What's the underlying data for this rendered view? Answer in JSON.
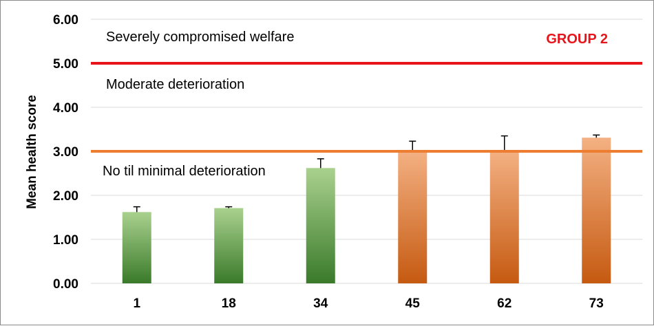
{
  "chart_data": {
    "type": "bar",
    "title": "",
    "group_label": "GROUP 2",
    "xlabel": "",
    "ylabel": "Mean health score",
    "ylim": [
      0,
      6
    ],
    "yticks": [
      "0.00",
      "1.00",
      "2.00",
      "3.00",
      "4.00",
      "5.00",
      "6.00"
    ],
    "categories": [
      "1",
      "18",
      "34",
      "45",
      "62",
      "73"
    ],
    "values": [
      1.62,
      1.71,
      2.62,
      3.02,
      3.02,
      3.31
    ],
    "error_upper": [
      1.74,
      1.74,
      2.83,
      3.23,
      3.35,
      3.37
    ],
    "bar_colors": [
      "green",
      "green",
      "green",
      "orange",
      "orange",
      "orange"
    ],
    "grid": true,
    "thresholds": [
      {
        "name": "severe",
        "value": 5,
        "color": "#e8141b"
      },
      {
        "name": "moderate",
        "value": 3,
        "color": "#ed7d31"
      }
    ],
    "zone_labels": {
      "severe": "Severely compromised welfare",
      "moderate": "Moderate deterioration",
      "minimal": "No til minimal deterioration"
    }
  },
  "colors": {
    "group_label": "#e8141b",
    "grid": "#d9d9d9",
    "green_top": "#a9d18e",
    "green_bottom": "#3a7a2a",
    "orange_top": "#f4b183",
    "orange_bottom": "#c55a11",
    "error_bar": "#000000"
  }
}
